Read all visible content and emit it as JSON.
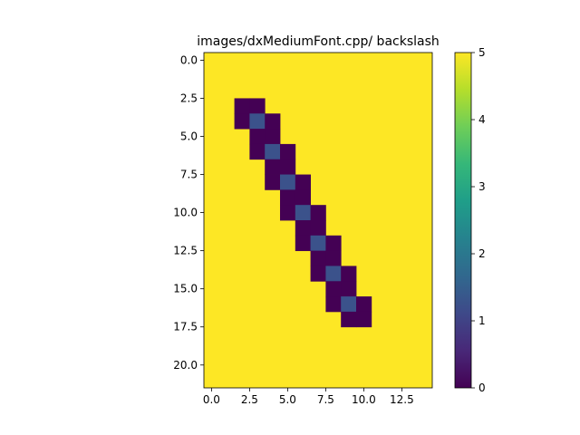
{
  "chart_data": {
    "type": "heatmap",
    "title": "images/dxMediumFont.cpp/ backslash",
    "xlabel": "",
    "ylabel": "",
    "rows": 22,
    "cols": 15,
    "xlim": [
      -0.5,
      14.5
    ],
    "ylim": [
      21.5,
      -0.5
    ],
    "x_ticks": [
      0,
      2.5,
      5,
      7.5,
      10,
      12.5
    ],
    "x_tick_labels": [
      "0.0",
      "2.5",
      "5.0",
      "7.5",
      "10.0",
      "12.5"
    ],
    "y_ticks": [
      0,
      2.5,
      5,
      7.5,
      10,
      12.5,
      15,
      17.5,
      20
    ],
    "y_tick_labels": [
      "0.0",
      "2.5",
      "5.0",
      "7.5",
      "10.0",
      "12.5",
      "15.0",
      "17.5",
      "20.0"
    ],
    "background_value": 5,
    "cells": [
      {
        "row": 3,
        "col": 2,
        "value": 0
      },
      {
        "row": 3,
        "col": 3,
        "value": 0
      },
      {
        "row": 4,
        "col": 2,
        "value": 0
      },
      {
        "row": 4,
        "col": 3,
        "value": 1
      },
      {
        "row": 4,
        "col": 4,
        "value": 0
      },
      {
        "row": 5,
        "col": 3,
        "value": 0
      },
      {
        "row": 5,
        "col": 4,
        "value": 0
      },
      {
        "row": 6,
        "col": 3,
        "value": 0
      },
      {
        "row": 6,
        "col": 4,
        "value": 1
      },
      {
        "row": 6,
        "col": 5,
        "value": 0
      },
      {
        "row": 7,
        "col": 4,
        "value": 0
      },
      {
        "row": 7,
        "col": 5,
        "value": 0
      },
      {
        "row": 8,
        "col": 4,
        "value": 0
      },
      {
        "row": 8,
        "col": 5,
        "value": 1
      },
      {
        "row": 8,
        "col": 6,
        "value": 0
      },
      {
        "row": 9,
        "col": 5,
        "value": 0
      },
      {
        "row": 9,
        "col": 6,
        "value": 0
      },
      {
        "row": 10,
        "col": 5,
        "value": 0
      },
      {
        "row": 10,
        "col": 6,
        "value": 1
      },
      {
        "row": 10,
        "col": 7,
        "value": 0
      },
      {
        "row": 11,
        "col": 6,
        "value": 0
      },
      {
        "row": 11,
        "col": 7,
        "value": 0
      },
      {
        "row": 12,
        "col": 6,
        "value": 0
      },
      {
        "row": 12,
        "col": 7,
        "value": 1
      },
      {
        "row": 12,
        "col": 8,
        "value": 0
      },
      {
        "row": 13,
        "col": 7,
        "value": 0
      },
      {
        "row": 13,
        "col": 8,
        "value": 0
      },
      {
        "row": 14,
        "col": 7,
        "value": 0
      },
      {
        "row": 14,
        "col": 8,
        "value": 1
      },
      {
        "row": 14,
        "col": 9,
        "value": 0
      },
      {
        "row": 15,
        "col": 8,
        "value": 0
      },
      {
        "row": 15,
        "col": 9,
        "value": 0
      },
      {
        "row": 16,
        "col": 8,
        "value": 0
      },
      {
        "row": 16,
        "col": 9,
        "value": 1
      },
      {
        "row": 16,
        "col": 10,
        "value": 0
      },
      {
        "row": 17,
        "col": 9,
        "value": 0
      },
      {
        "row": 17,
        "col": 10,
        "value": 0
      }
    ],
    "colorbar": {
      "min": 0,
      "max": 5,
      "ticks": [
        0,
        1,
        2,
        3,
        4,
        5
      ],
      "tick_labels": [
        "0",
        "1",
        "2",
        "3",
        "4",
        "5"
      ],
      "colormap": "viridis"
    },
    "colors": {
      "c0": "#440154",
      "c1": "#3b528b",
      "c2": "#21908d",
      "c3": "#27ad81",
      "c4": "#5dc963",
      "c5": "#fde725"
    },
    "grid": false,
    "legend": "none"
  }
}
